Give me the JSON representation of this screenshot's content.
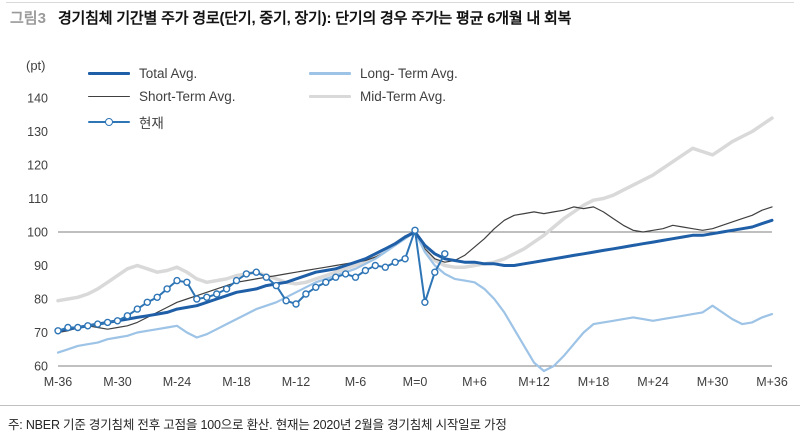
{
  "header": {
    "figure_label": "그림3",
    "title": "경기침체 기간별 주가 경로(단기, 중기, 장기): 단기의 경우 주가는 평균 6개월 내 회복"
  },
  "axis_unit": "(pt)",
  "legend": {
    "items": [
      {
        "key": "total",
        "label": "Total Avg."
      },
      {
        "key": "long",
        "label": "Long- Term Avg."
      },
      {
        "key": "short",
        "label": "Short-Term Avg."
      },
      {
        "key": "mid",
        "label": "Mid-Term Avg."
      },
      {
        "key": "current",
        "label": "현재"
      }
    ]
  },
  "chart_data": {
    "type": "line",
    "title": "경기침체 기간별 주가 경로",
    "xlabel": "",
    "ylabel": "(pt)",
    "ylim": [
      60,
      140
    ],
    "y_ticks": [
      60,
      70,
      80,
      90,
      100,
      110,
      120,
      130,
      140
    ],
    "x_tick_labels": [
      "M-36",
      "M-30",
      "M-24",
      "M-18",
      "M-12",
      "M-6",
      "M=0",
      "M+6",
      "M+12",
      "M+18",
      "M+24",
      "M+30",
      "M+36"
    ],
    "x_count": 73,
    "reference_line": 100,
    "grid": false,
    "legend_position": "top-left-inside",
    "series": [
      {
        "key": "mid",
        "name": "Mid-Term Avg.",
        "color": "#d9d9d9",
        "width": 3.5,
        "values": [
          79.5,
          80,
          80.5,
          81.5,
          83,
          85,
          87,
          89,
          90,
          89,
          88,
          88.5,
          89.5,
          88,
          86,
          85,
          85.5,
          86,
          87,
          87.5,
          88,
          87,
          86,
          85,
          84.5,
          85,
          86,
          87,
          88,
          89,
          90,
          91,
          92.5,
          94.5,
          96.5,
          98.5,
          100,
          95,
          91.5,
          90,
          89.5,
          89.5,
          90,
          90.5,
          91,
          92,
          93.5,
          95,
          97,
          99,
          101.5,
          104,
          106,
          108,
          109.5,
          110,
          111,
          112.5,
          114,
          115.5,
          117,
          119,
          121,
          123,
          125,
          124,
          123,
          125,
          127,
          128.5,
          130,
          132,
          134
        ]
      },
      {
        "key": "short",
        "name": "Short-Term Avg.",
        "color": "#404040",
        "width": 1.2,
        "values": [
          70,
          70.5,
          71.5,
          72,
          71.5,
          71,
          71.5,
          72,
          73,
          74.5,
          76,
          77.5,
          79,
          80,
          81,
          82,
          83,
          84,
          85,
          85.5,
          86,
          86.5,
          87,
          87.5,
          88,
          88.5,
          89,
          89.5,
          90,
          90.5,
          91,
          91.5,
          92.5,
          94,
          96,
          98,
          100,
          95,
          92,
          91,
          91.5,
          93,
          95.5,
          98,
          101,
          103.5,
          105,
          105.5,
          106,
          105.5,
          106,
          106.5,
          107.5,
          107,
          107.5,
          106,
          104,
          102,
          100.5,
          100,
          100.5,
          101,
          102,
          101.5,
          101,
          100.5,
          101,
          102,
          103,
          104,
          105,
          106.5,
          107.5
        ]
      },
      {
        "key": "long",
        "name": "Long- Term Avg.",
        "color": "#9dc3e6",
        "width": 2.2,
        "values": [
          64,
          65,
          66,
          66.5,
          67,
          68,
          68.5,
          69,
          70,
          70.5,
          71,
          71.5,
          72,
          70,
          68.5,
          69.5,
          71,
          72.5,
          74,
          75.5,
          77,
          78,
          79,
          80.5,
          82,
          83.5,
          85,
          86,
          87,
          88,
          89,
          90.5,
          92,
          94,
          96,
          98,
          100,
          94,
          90,
          87.5,
          86,
          85.5,
          85,
          83,
          80,
          76,
          71,
          66,
          61,
          58.5,
          60,
          63,
          66.5,
          70,
          72.5,
          73,
          73.5,
          74,
          74.5,
          74,
          73.5,
          74,
          74.5,
          75,
          75.5,
          76,
          78,
          76,
          74,
          72.5,
          73,
          74.5,
          75.5
        ]
      },
      {
        "key": "total",
        "name": "Total Avg.",
        "color": "#1f5fa8",
        "width": 3,
        "values": [
          70.5,
          71,
          71.5,
          72,
          72.5,
          73,
          73.5,
          74,
          74.5,
          75,
          75.5,
          76,
          77,
          77.5,
          78,
          79,
          80,
          81,
          82,
          82.5,
          83,
          84,
          84.5,
          85,
          86,
          87,
          88,
          88.5,
          89,
          90,
          91,
          92,
          93.5,
          95,
          96.5,
          98.5,
          100,
          96,
          93.5,
          92,
          91.5,
          91,
          91,
          90.5,
          90.5,
          90,
          90,
          90.5,
          91,
          91.5,
          92,
          92.5,
          93,
          93.5,
          94,
          94.5,
          95,
          95.5,
          96,
          96.5,
          97,
          97.5,
          98,
          98.5,
          99,
          99,
          99.5,
          100,
          100.5,
          101,
          101.5,
          102.5,
          103.5
        ]
      },
      {
        "key": "current",
        "name": "현재",
        "color": "#2e75b6",
        "width": 2,
        "markers": true,
        "values": [
          70.5,
          71.5,
          71.5,
          72,
          72.5,
          73,
          73.5,
          75,
          77,
          79,
          80.5,
          83,
          85.5,
          85,
          80,
          80.5,
          81.5,
          83,
          85.5,
          87.5,
          88,
          86.5,
          84,
          79.5,
          78.5,
          81.5,
          83.5,
          85,
          86.5,
          87.5,
          86.5,
          88.5,
          90,
          89.5,
          91,
          92,
          100.5,
          79,
          88,
          93.5
        ]
      }
    ]
  },
  "footnote": "주: NBER 기준 경기침체 전후 고점을 100으로 환산. 현재는 2020년 2월을 경기침체 시작일로 가정"
}
